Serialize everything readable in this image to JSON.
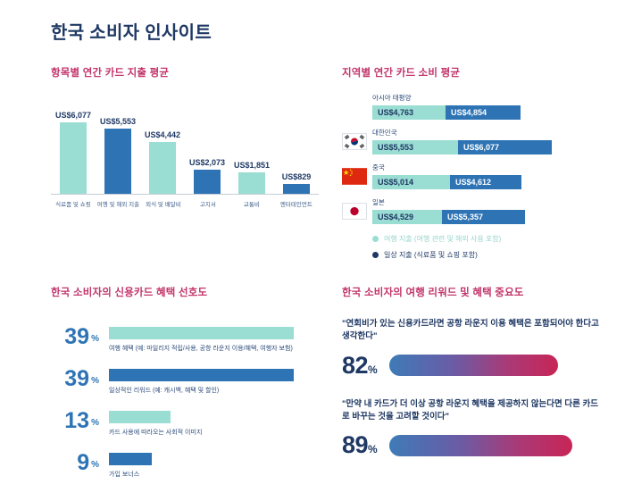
{
  "page": {
    "title": "한국 소비자 인사이트"
  },
  "symbols": {
    "percent": "%"
  },
  "colors": {
    "navy": "#1F3864",
    "teal": "#9ADDD3",
    "blue": "#2E74B5",
    "pink_title": "#C2356B",
    "gradient_start": "#3E7BB7",
    "gradient_end": "#C82556"
  },
  "chart_data": [
    {
      "id": "spend_by_category",
      "type": "bar",
      "title": "항목별 연간 카드 지출 평균",
      "unit": "US$",
      "categories": [
        "식료품 및 쇼핑",
        "여행 및 해외 지출",
        "외식 및 배달비",
        "고지서",
        "교통비",
        "엔터테인먼트"
      ],
      "values": [
        6077,
        5553,
        4442,
        2073,
        1851,
        829
      ],
      "value_labels": [
        "US$6,077",
        "US$5,553",
        "US$4,442",
        "US$2,073",
        "US$1,851",
        "US$829"
      ],
      "bar_colors": [
        "teal",
        "blue",
        "teal",
        "blue",
        "teal",
        "blue"
      ],
      "ylim": [
        0,
        6500
      ],
      "grid": false,
      "legend_position": "none"
    },
    {
      "id": "spend_by_region",
      "type": "stacked_horizontal_bar",
      "title": "지역별 연간 카드 소비 평균",
      "unit": "US$",
      "series_names": [
        "여행 지출",
        "일상 지출"
      ],
      "rows": [
        {
          "label": "아시아 태평양",
          "flag": "",
          "travel": 4763,
          "travel_label": "US$4,763",
          "daily": 4854,
          "daily_label": "US$4,854"
        },
        {
          "label": "대한민국",
          "flag": "south-korea",
          "travel": 5553,
          "travel_label": "US$5,553",
          "daily": 6077,
          "daily_label": "US$6,077"
        },
        {
          "label": "중국",
          "flag": "china",
          "travel": 5014,
          "travel_label": "US$5,014",
          "daily": 4612,
          "daily_label": "US$4,612"
        },
        {
          "label": "일본",
          "flag": "japan",
          "travel": 4529,
          "travel_label": "US$4,529",
          "daily": 5357,
          "daily_label": "US$5,357"
        }
      ],
      "legend": [
        {
          "label": "여행 지출 (여행 관련 및 해외 사용 포함)",
          "color": "teal"
        },
        {
          "label": "일상 지출 (식료품 및 쇼핑 포함)",
          "color": "navy"
        }
      ],
      "legend_position": "bottom"
    },
    {
      "id": "benefit_preference",
      "type": "bar",
      "title": "한국 소비자의 신용카드 혜택 선호도",
      "unit": "%",
      "rows": [
        {
          "pct": "39",
          "label": "여행 혜택 (예: 마일리지 적립/사용, 공항 라운지 이용/혜택, 여행자 보험)",
          "color": "teal"
        },
        {
          "pct": "39",
          "label": "일상적인 리워드 (예: 캐시백, 혜택 및 할인)",
          "color": "blue"
        },
        {
          "pct": "13",
          "label": "카드 사용에 따라오는 사회적 이미지",
          "color": "teal"
        },
        {
          "pct": "9",
          "label": "가입 보너스",
          "color": "blue"
        }
      ],
      "xlim": [
        0,
        100
      ],
      "grid": false
    },
    {
      "id": "travel_reward_importance",
      "type": "bar",
      "title": "한국 소비자의 여행 리워드 및 혜택 중요도",
      "unit": "%",
      "rows": [
        {
          "pct": "82",
          "quote": "\"연회비가 있는 신용카드라면 공항 라운지 이용 혜택은 포함되어야 한다고 생각한다\""
        },
        {
          "pct": "89",
          "quote": "\"만약 내 카드가 더 이상 공항 라운지 혜택을 제공하지 않는다면 다른 카드로 바꾸는 것을 고려할 것이다\""
        }
      ],
      "xlim": [
        0,
        100
      ],
      "grid": false
    }
  ]
}
